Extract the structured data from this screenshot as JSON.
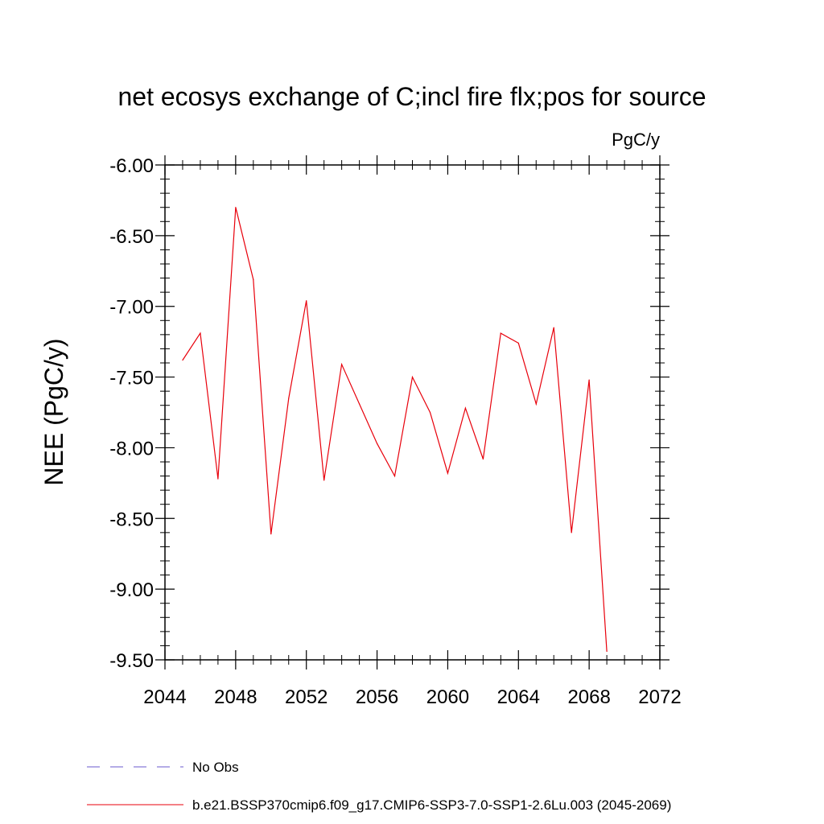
{
  "chart_data": {
    "type": "line",
    "title": "net ecosys exchange of C;incl fire flx;pos for source",
    "units_label": "PgC/y",
    "ylabel": "NEE  (PgC/y)",
    "xlabel": "",
    "xlim": [
      2044,
      2072
    ],
    "ylim": [
      -9.5,
      -6.0
    ],
    "x_ticks": [
      2044,
      2048,
      2052,
      2056,
      2060,
      2064,
      2068,
      2072
    ],
    "x_tick_labels": [
      "2044",
      "2048",
      "2052",
      "2056",
      "2060",
      "2064",
      "2068",
      "2072"
    ],
    "y_ticks": [
      -6.0,
      -6.5,
      -7.0,
      -7.5,
      -8.0,
      -8.5,
      -9.0,
      -9.5
    ],
    "y_tick_labels": [
      "-6.00",
      "-6.50",
      "-7.00",
      "-7.50",
      "-8.00",
      "-8.50",
      "-9.00",
      "-9.50"
    ],
    "grid": false,
    "series": [
      {
        "name": "b.e21.BSSP370cmip6.f09_g17.CMIP6-SSP3-7.0-SSP1-2.6Lu.003 (2045-2069)",
        "color": "#e8000b",
        "x": [
          2045,
          2046,
          2047,
          2048,
          2049,
          2050,
          2051,
          2052,
          2053,
          2054,
          2055,
          2056,
          2057,
          2058,
          2059,
          2060,
          2061,
          2062,
          2063,
          2064,
          2065,
          2066,
          2067,
          2068,
          2069
        ],
        "values": [
          -7.38,
          -7.19,
          -8.22,
          -6.3,
          -6.81,
          -8.61,
          -7.65,
          -6.96,
          -8.23,
          -7.41,
          -7.69,
          -7.97,
          -8.2,
          -7.5,
          -7.75,
          -8.18,
          -7.72,
          -8.08,
          -7.19,
          -7.26,
          -7.69,
          -7.15,
          -8.6,
          -7.52,
          -9.44
        ]
      }
    ],
    "legend": [
      {
        "label": "No Obs",
        "color": "#6a5acd",
        "style": "dashed"
      },
      {
        "label": "b.e21.BSSP370cmip6.f09_g17.CMIP6-SSP3-7.0-SSP1-2.6Lu.003 (2045-2069)",
        "color": "#e8000b",
        "style": "solid"
      }
    ],
    "legend_position": "bottom-left"
  }
}
